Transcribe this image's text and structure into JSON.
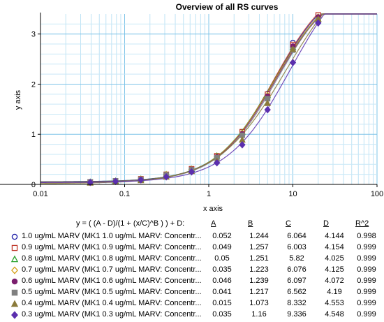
{
  "chart_data": {
    "type": "scatter",
    "title": "Overview of all RS curves",
    "xlabel": "x axis",
    "ylabel": "y axis",
    "x_scale": "log",
    "xlim": [
      0.01,
      100
    ],
    "ylim": [
      0,
      3.4
    ],
    "x_ticks": [
      "0.01",
      "0.1",
      "1",
      "10",
      "100"
    ],
    "y_ticks": [
      "0",
      "1",
      "2",
      "3"
    ],
    "grid": true,
    "equation": "y = ( (A - D)/(1 + (x/C)^B ) ) + D:",
    "columns": [
      "A",
      "B",
      "C",
      "D",
      "R^2"
    ],
    "x": [
      0.039,
      0.078,
      0.156,
      0.3125,
      0.625,
      1.25,
      2.5,
      5,
      10,
      20
    ],
    "series": [
      {
        "name": "1.0 ug/mL MARV (MK1 1.0 ug/mL MARV: Concentr...",
        "marker": "circle-open",
        "color": "#1a1aa6",
        "params": {
          "A": "0.052",
          "B": "1.244",
          "C": "6.064",
          "D": "4.144",
          "R2": "0.998"
        },
        "values": [
          0.05,
          0.07,
          0.11,
          0.19,
          0.31,
          0.56,
          1.04,
          1.81,
          2.83,
          3.38
        ]
      },
      {
        "name": "0.9 ug/mL MARV (MK1 0.9 ug/mL MARV: Concentr...",
        "marker": "square-open",
        "color": "#c0392b",
        "params": {
          "A": "0.049",
          "B": "1.257",
          "C": "6.003",
          "D": "4.154",
          "R2": "0.999"
        },
        "values": [
          0.05,
          0.07,
          0.11,
          0.2,
          0.31,
          0.57,
          1.05,
          1.8,
          2.79,
          3.38
        ]
      },
      {
        "name": "0.8 ug/mL MARV (MK1 0.8 ug/mL MARV: Concentr...",
        "marker": "triangle-open",
        "color": "#27a12a",
        "params": {
          "A": "0.05",
          "B": "1.251",
          "C": "5.82",
          "D": "4.025",
          "R2": "0.999"
        },
        "values": [
          0.05,
          0.07,
          0.11,
          0.2,
          0.31,
          0.57,
          1.04,
          1.78,
          2.74,
          3.3
        ]
      },
      {
        "name": "0.7 ug/mL MARV (MK1 0.7 ug/mL MARV: Concentr...",
        "marker": "diamond-open",
        "color": "#d4a017",
        "params": {
          "A": "0.035",
          "B": "1.223",
          "C": "6.076",
          "D": "4.125",
          "R2": "0.999"
        },
        "values": [
          0.04,
          0.06,
          0.1,
          0.19,
          0.3,
          0.55,
          1.02,
          1.77,
          2.74,
          3.34
        ]
      },
      {
        "name": "0.6 ug/mL MARV (MK1 0.6 ug/mL MARV: Concentr...",
        "marker": "circle-filled",
        "color": "#7b1e6e",
        "params": {
          "A": "0.046",
          "B": "1.239",
          "C": "6.097",
          "D": "4.072",
          "R2": "0.999"
        },
        "values": [
          0.05,
          0.07,
          0.1,
          0.19,
          0.3,
          0.55,
          1.01,
          1.76,
          2.76,
          3.34
        ]
      },
      {
        "name": "0.5 ug/mL MARV (MK1 0.5 ug/mL MARV: Concentr...",
        "marker": "square-filled",
        "color": "#808080",
        "params": {
          "A": "0.041",
          "B": "1.217",
          "C": "6.562",
          "D": "4.19",
          "R2": "0.999"
        },
        "values": [
          0.05,
          0.07,
          0.1,
          0.19,
          0.29,
          0.53,
          0.98,
          1.71,
          2.68,
          3.28
        ]
      },
      {
        "name": "0.4 ug/mL MARV (MK1 0.4 ug/mL MARV: Concentr...",
        "marker": "triangle-filled",
        "color": "#8a7a3a",
        "params": {
          "A": "0.015",
          "B": "1.073",
          "C": "8.332",
          "D": "4.553",
          "R2": "0.999"
        },
        "values": [
          0.03,
          0.05,
          0.08,
          0.15,
          0.26,
          0.47,
          0.89,
          1.62,
          2.7,
          3.3
        ]
      },
      {
        "name": "0.3 ug/mL MARV (MK1 0.3 ug/mL MARV: Concentr...",
        "marker": "diamond-filled",
        "color": "#5b2fae",
        "params": {
          "A": "0.035",
          "B": "1.16",
          "C": "9.336",
          "D": "4.548",
          "R2": "0.999"
        },
        "values": [
          0.04,
          0.06,
          0.09,
          0.15,
          0.25,
          0.43,
          0.79,
          1.49,
          2.43,
          3.22
        ]
      }
    ]
  }
}
